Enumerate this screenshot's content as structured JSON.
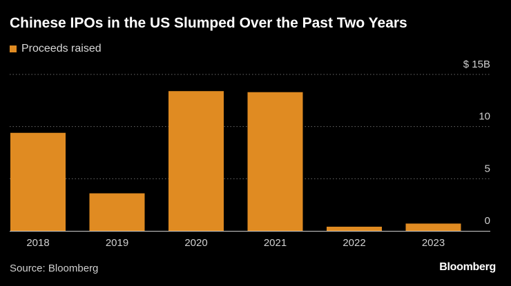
{
  "title": "Chinese IPOs in the US Slumped Over the Past Two Years",
  "legend": {
    "label": "Proceeds raised",
    "color": "#e08b22"
  },
  "source": "Source: Bloomberg",
  "brand": "Bloomberg",
  "chart_data": {
    "type": "bar",
    "title": "Chinese IPOs in the US Slumped Over the Past Two Years",
    "xlabel": "",
    "ylabel": "",
    "categories": [
      "2018",
      "2019",
      "2020",
      "2021",
      "2022",
      "2023"
    ],
    "series": [
      {
        "name": "Proceeds raised",
        "values": [
          9.4,
          3.6,
          13.4,
          13.3,
          0.4,
          0.7
        ]
      }
    ],
    "ylim": [
      0,
      15
    ],
    "yticks": [
      0,
      5,
      10,
      15
    ],
    "ytick_labels": [
      "0",
      "5",
      "10",
      "$ 15B"
    ],
    "grid": true,
    "legend_position": "top-left",
    "bar_color": "#e08b22"
  }
}
